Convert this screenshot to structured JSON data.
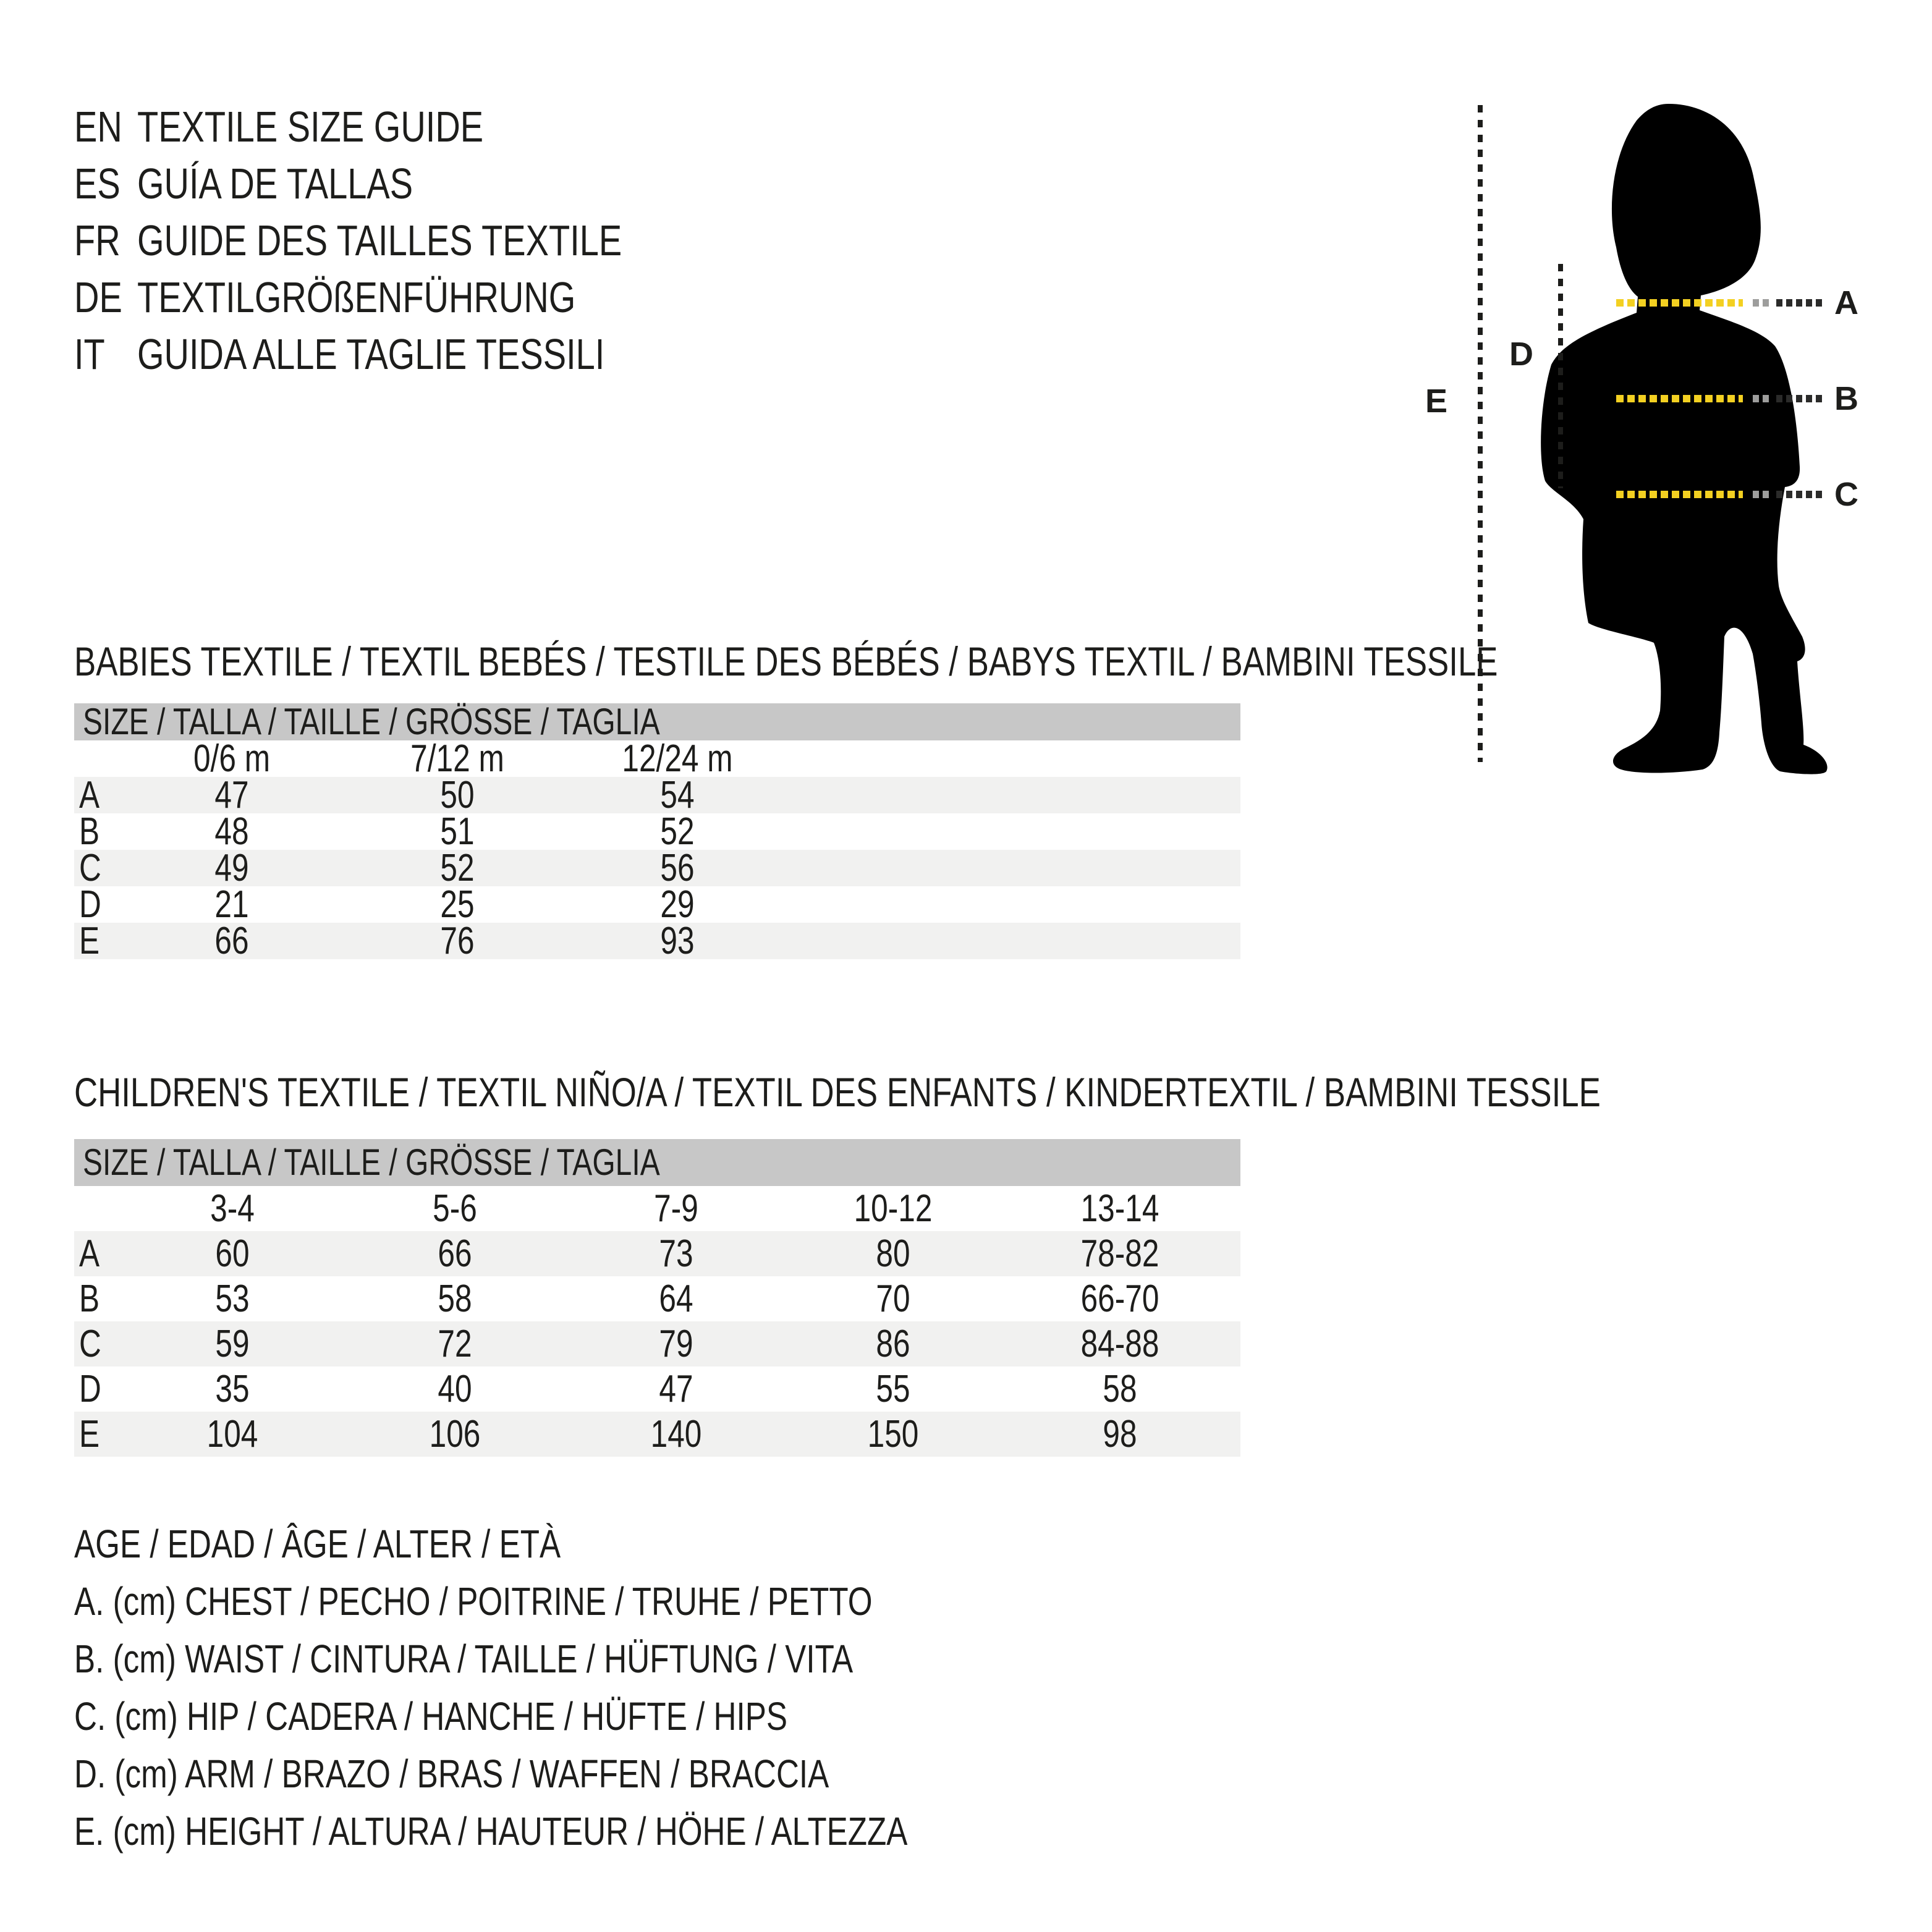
{
  "header": {
    "languages": [
      {
        "code": "EN",
        "title": "TEXTILE SIZE GUIDE"
      },
      {
        "code": "ES",
        "title": "GUÍA DE TALLAS"
      },
      {
        "code": "FR",
        "title": "GUIDE DES TAILLES TEXTILE"
      },
      {
        "code": "DE",
        "title": "TEXTILGRÖßENFÜHRUNG"
      },
      {
        "code": "IT",
        "title": "GUIDA ALLE TAGLIE TESSILI"
      }
    ]
  },
  "figure": {
    "measure_labels": {
      "a": "A",
      "b": "B",
      "c": "C",
      "d": "D",
      "e": "E"
    }
  },
  "babies_table": {
    "section_title": "BABIES TEXTILE / TEXTIL BEBÉS / TESTILE DES BÉBÉS / BABYS TEXTIL / BAMBINI TESSILE",
    "size_header": "SIZE / TALLA / TAILLE / GRÖSSE / TAGLIA",
    "columns": [
      "0/6 m",
      "7/12 m",
      "12/24 m"
    ],
    "rows": [
      {
        "label": "A",
        "values": [
          "47",
          "50",
          "54"
        ]
      },
      {
        "label": "B",
        "values": [
          "48",
          "51",
          "52"
        ]
      },
      {
        "label": "C",
        "values": [
          "49",
          "52",
          "56"
        ]
      },
      {
        "label": "D",
        "values": [
          "21",
          "25",
          "29"
        ]
      },
      {
        "label": "E",
        "values": [
          "66",
          "76",
          "93"
        ]
      }
    ]
  },
  "children_table": {
    "section_title": "CHILDREN'S TEXTILE / TEXTIL NIÑO/A / TEXTIL DES ENFANTS / KINDERTEXTIL / BAMBINI TESSILE",
    "size_header": "SIZE / TALLA / TAILLE / GRÖSSE / TAGLIA",
    "columns": [
      "3-4",
      "5-6",
      "7-9",
      "10-12",
      "13-14"
    ],
    "rows": [
      {
        "label": "A",
        "values": [
          "60",
          "66",
          "73",
          "80",
          "78-82"
        ]
      },
      {
        "label": "B",
        "values": [
          "53",
          "58",
          "64",
          "70",
          "66-70"
        ]
      },
      {
        "label": "C",
        "values": [
          "59",
          "72",
          "79",
          "86",
          "84-88"
        ]
      },
      {
        "label": "D",
        "values": [
          "35",
          "40",
          "47",
          "55",
          "58"
        ]
      },
      {
        "label": "E",
        "values": [
          "104",
          "106",
          "140",
          "150",
          "98"
        ]
      }
    ]
  },
  "legend": {
    "lines": [
      "AGE / EDAD / ÂGE / ALTER / ETÀ",
      "A. (cm) CHEST / PECHO / POITRINE / TRUHE / PETTO",
      "B. (cm) WAIST / CINTURA / TAILLE / HÜFTUNG / VITA",
      "C. (cm) HIP / CADERA / HANCHE / HÜFTE / HIPS",
      "D. (cm) ARM / BRAZO / BRAS / WAFFEN / BRACCIA",
      "E. (cm) HEIGHT / ALTURA / HAUTEUR / HÖHE / ALTEZZA"
    ]
  },
  "colors": {
    "text": "#1d1d1b",
    "band_gray": "#c7c7c7",
    "row_stripe": "#f1f1f0",
    "accent_yellow": "#f3d021",
    "dash_dark": "#2b2b2a",
    "dash_gray": "#9d9d9c"
  }
}
